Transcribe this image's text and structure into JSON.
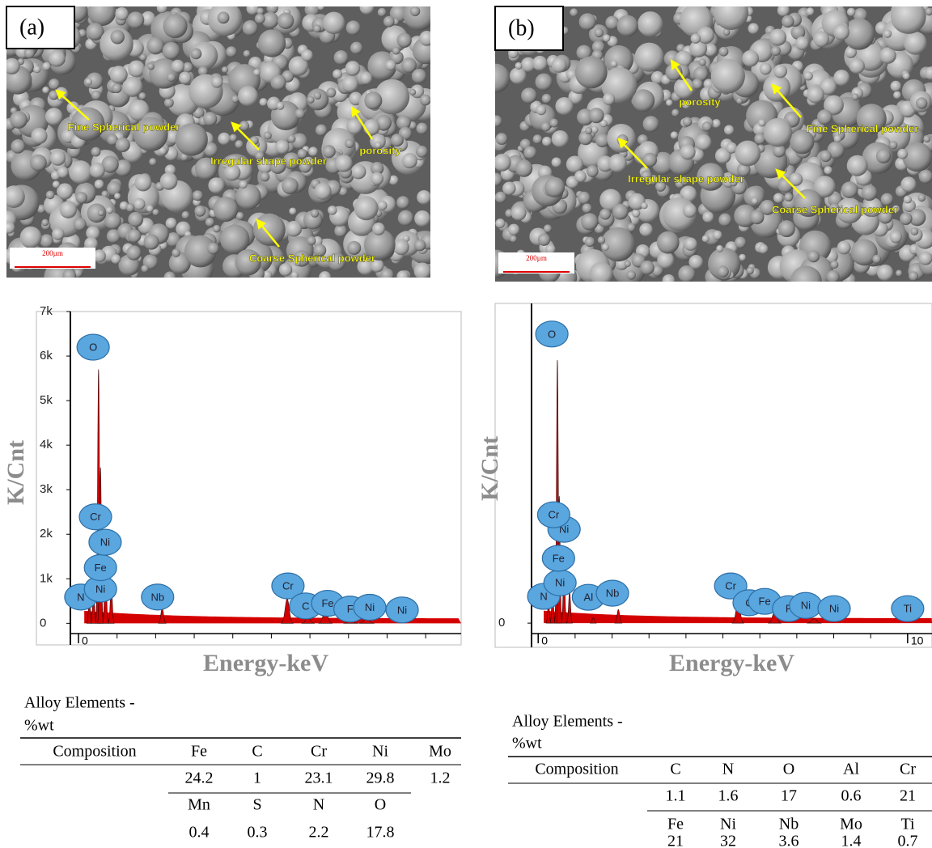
{
  "panels": [
    {
      "label": "(a)",
      "scale_bar": "200µm",
      "annotations": [
        "Fine Spherical powder",
        "Irregular shape powder",
        "porosity",
        "Coarse Spherical powder"
      ],
      "spectrum": {
        "type": "area",
        "ylabel": "K/Cnt",
        "xlabel": "Energy-keV",
        "xlim": [
          -0.21,
          9.92
        ],
        "ylim": [
          -230,
          7000
        ],
        "xticks": [
          0
        ],
        "yticks": [
          0,
          {
            "value": 1000,
            "label": "1k"
          },
          {
            "value": 2000,
            "label": "2k"
          },
          {
            "value": 3000,
            "label": "3k"
          },
          {
            "value": 4000,
            "label": "4k"
          },
          {
            "value": 5000,
            "label": "5k"
          },
          {
            "value": 6000,
            "label": "6k"
          },
          {
            "value": 7000,
            "label": "7k"
          }
        ],
        "peaks": {
          "energy": [
            0.28,
            0.39,
            0.52,
            0.57,
            0.7,
            0.85,
            2.17,
            5.41,
            5.95,
            6.4,
            7.06,
            7.47
          ],
          "counts": [
            600,
            900,
            5700,
            3500,
            1400,
            900,
            350,
            550,
            150,
            300,
            80,
            120
          ]
        },
        "element_labels": {
          "names": [
            "N",
            "Ni",
            "Fe",
            "Ni",
            "Cr",
            "O",
            "Nb",
            "Cr",
            "C",
            "Fe",
            "F",
            "Ni",
            "Ni"
          ],
          "energy": [
            0.06,
            0.57,
            0.57,
            0.69,
            0.44,
            0.38,
            2.05,
            5.43,
            5.89,
            6.46,
            7.04,
            7.55,
            8.39
          ],
          "counts": [
            590,
            770,
            1250,
            1820,
            2390,
            6200,
            590,
            840,
            390,
            450,
            320,
            360,
            300
          ]
        }
      },
      "table": {
        "title": "Alloy Elements -",
        "unit": "%wt",
        "header": [
          "Composition",
          "Fe",
          "C",
          "Cr",
          "Ni",
          "Mo"
        ],
        "rows": [
          [
            24.2,
            1,
            23.1,
            29.8,
            1.2
          ],
          [
            "Mn",
            "S",
            "N",
            "O"
          ],
          [
            0.4,
            0.3,
            2.2,
            17.8
          ]
        ]
      }
    },
    {
      "label": "(b)",
      "scale_bar": "200µm",
      "annotations": [
        "porosity",
        "Fine Spherical powder",
        "Irregular shape powder",
        "Coarse Spherical powder"
      ],
      "spectrum": {
        "type": "area",
        "ylabel": "K/Cnt",
        "xlabel": "Energy-keV",
        "xlim": [
          -0.18,
          10.66
        ],
        "ylim": [
          -230,
          7050
        ],
        "xticks": [
          0,
          10
        ],
        "yticks": [
          0
        ],
        "peaks": {
          "energy": [
            0.28,
            0.39,
            0.52,
            0.57,
            0.7,
            0.85,
            1.49,
            2.17,
            5.41,
            6.4,
            7.47
          ],
          "counts": [
            500,
            800,
            5800,
            2800,
            1200,
            700,
            120,
            300,
            500,
            250,
            100
          ]
        },
        "element_labels": {
          "names": [
            "N",
            "Ni",
            "Fe",
            "Ni",
            "Cr",
            "O",
            "Al",
            "Nb",
            "Cr",
            "C",
            "Fe",
            "F",
            "Ni",
            "Ni",
            "Ti"
          ],
          "energy": [
            0.15,
            0.59,
            0.55,
            0.7,
            0.42,
            0.37,
            1.36,
            2.01,
            5.21,
            5.71,
            6.13,
            6.78,
            7.24,
            8.01,
            10.0
          ],
          "counts": [
            590,
            890,
            1430,
            2070,
            2390,
            6375,
            570,
            660,
            820,
            450,
            480,
            320,
            390,
            320,
            320
          ]
        }
      },
      "table": {
        "title": "Alloy Elements -",
        "unit": "%wt",
        "header": [
          "Composition",
          "C",
          "N",
          "O",
          "Al",
          "Cr"
        ],
        "rows": [
          [
            1.1,
            1.6,
            17,
            0.6,
            21
          ],
          [
            "Fe",
            "Ni",
            "Nb",
            "Mo",
            "Ti"
          ],
          [
            21,
            32,
            3.6,
            1.4,
            0.7
          ]
        ]
      }
    }
  ]
}
